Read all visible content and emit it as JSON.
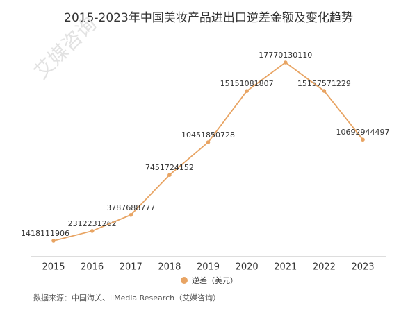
{
  "chart_data": {
    "type": "line",
    "title": "2015-2023年中国美妆产品进出口逆差金额及变化趋势",
    "categories": [
      "2015",
      "2016",
      "2017",
      "2018",
      "2019",
      "2020",
      "2021",
      "2022",
      "2023"
    ],
    "series": [
      {
        "name": "逆差（美元）",
        "color": "#e8a463",
        "values": [
          1418111906,
          2312231262,
          3787688777,
          7451724152,
          10451850728,
          15151081807,
          17770130110,
          15157571229,
          10692944497
        ]
      }
    ],
    "legend": "bottom",
    "source": "数据来源：中国海关、iiMedia Research（艾媒咨询）",
    "watermark": "艾媒咨询"
  }
}
